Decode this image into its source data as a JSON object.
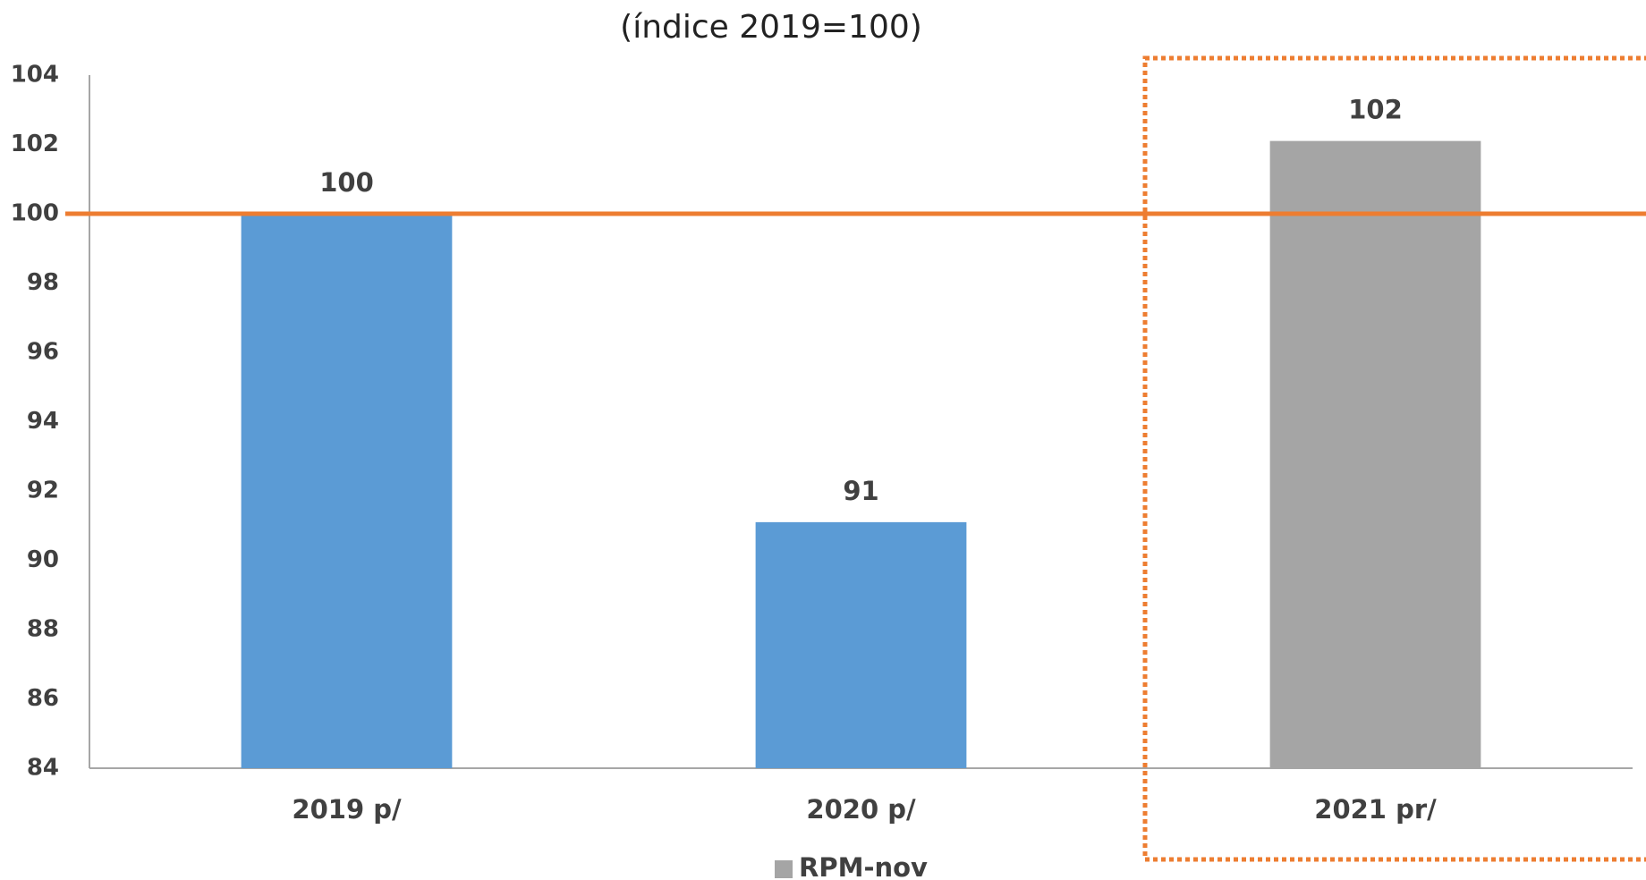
{
  "chart_data": {
    "type": "bar",
    "title": "(índice 2019=100)",
    "categories": [
      "2019 p/",
      "2020 p/",
      "2021 pr/"
    ],
    "series": [
      {
        "name": "RPM-nov",
        "color": "#a5a5a5",
        "values": [
          100,
          91.1,
          102.1
        ],
        "value_labels": [
          "100",
          "91",
          "102"
        ],
        "point_colors": [
          "#5b9bd5",
          "#5b9bd5",
          "#a5a5a5"
        ]
      }
    ],
    "ylim": [
      84,
      104
    ],
    "yticks": [
      84,
      86,
      88,
      90,
      92,
      94,
      96,
      98,
      100,
      102,
      104
    ],
    "grid": false,
    "legend": "bottom",
    "reference_line": {
      "value": 100,
      "color": "#ed7d31"
    }
  }
}
